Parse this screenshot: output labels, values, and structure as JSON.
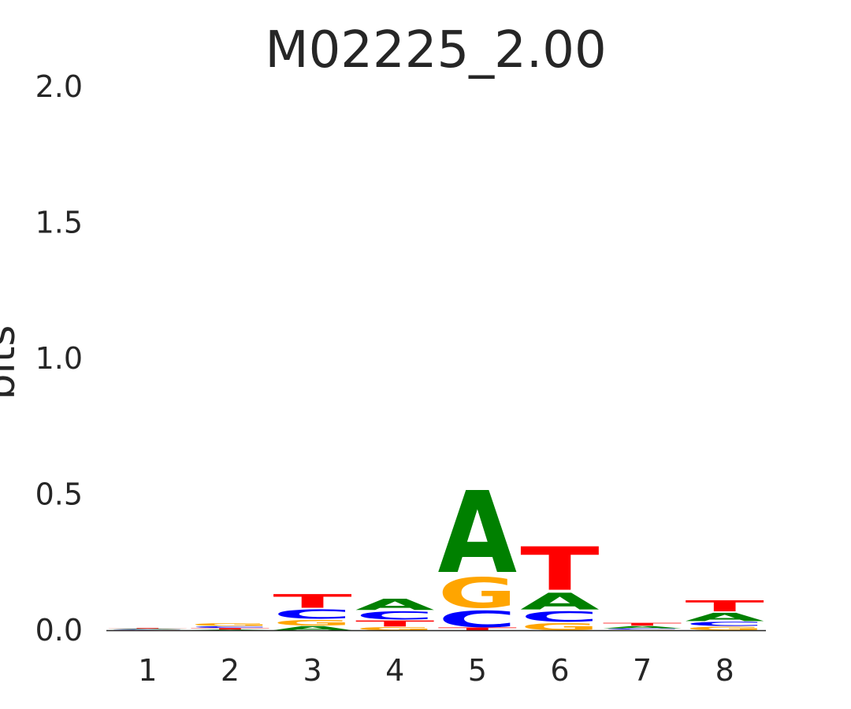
{
  "chart_data": {
    "type": "sequence-logo",
    "title": "M02225_2.00",
    "xlabel": "",
    "ylabel": "bits",
    "ylim": [
      0,
      2
    ],
    "yticks": [
      "0.0",
      "0.5",
      "1.0",
      "1.5",
      "2.0"
    ],
    "ytick_values": [
      0,
      0.5,
      1.0,
      1.5,
      2.0
    ],
    "x": [
      "1",
      "2",
      "3",
      "4",
      "5",
      "6",
      "7",
      "8"
    ],
    "colors": {
      "A": "#008000",
      "C": "#0000ff",
      "G": "#ffa500",
      "T": "#ff0000"
    },
    "positions": [
      {
        "pos": "1",
        "stack": [
          {
            "base": "G",
            "bits": 0.002
          },
          {
            "base": "C",
            "bits": 0.002
          },
          {
            "base": "A",
            "bits": 0.002
          },
          {
            "base": "T",
            "bits": 0.003
          }
        ]
      },
      {
        "pos": "2",
        "stack": [
          {
            "base": "A",
            "bits": 0.003
          },
          {
            "base": "T",
            "bits": 0.006
          },
          {
            "base": "C",
            "bits": 0.007
          },
          {
            "base": "G",
            "bits": 0.01
          }
        ]
      },
      {
        "pos": "3",
        "stack": [
          {
            "base": "A",
            "bits": 0.018
          },
          {
            "base": "G",
            "bits": 0.025
          },
          {
            "base": "C",
            "bits": 0.04
          },
          {
            "base": "T",
            "bits": 0.06
          }
        ]
      },
      {
        "pos": "4",
        "stack": [
          {
            "base": "G",
            "bits": 0.014
          },
          {
            "base": "T",
            "bits": 0.026
          },
          {
            "base": "C",
            "bits": 0.035
          },
          {
            "base": "A",
            "bits": 0.049
          }
        ]
      },
      {
        "pos": "5",
        "stack": [
          {
            "base": "T",
            "bits": 0.012
          },
          {
            "base": "C",
            "bits": 0.072
          },
          {
            "base": "G",
            "bits": 0.133
          },
          {
            "base": "A",
            "bits": 0.358
          }
        ]
      },
      {
        "pos": "6",
        "stack": [
          {
            "base": "G",
            "bits": 0.032
          },
          {
            "base": "C",
            "bits": 0.045
          },
          {
            "base": "A",
            "bits": 0.073
          },
          {
            "base": "T",
            "bits": 0.19
          }
        ]
      },
      {
        "pos": "7",
        "stack": [
          {
            "base": "G",
            "bits": 0.003
          },
          {
            "base": "C",
            "bits": 0.004
          },
          {
            "base": "A",
            "bits": 0.01
          },
          {
            "base": "T",
            "bits": 0.012
          }
        ]
      },
      {
        "pos": "8",
        "stack": [
          {
            "base": "G",
            "bits": 0.016
          },
          {
            "base": "C",
            "bits": 0.018
          },
          {
            "base": "A",
            "bits": 0.036
          },
          {
            "base": "T",
            "bits": 0.048
          }
        ]
      }
    ]
  }
}
